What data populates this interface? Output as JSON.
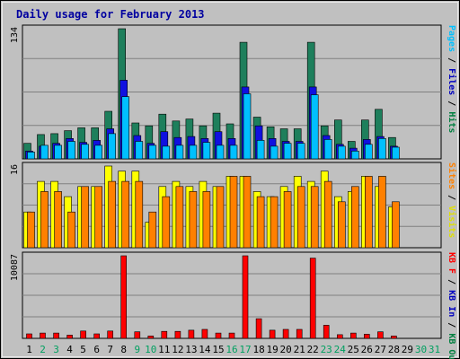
{
  "chart_data": {
    "type": "bar",
    "title": "Daily usage for February 2013",
    "categories": [
      "1",
      "2",
      "3",
      "4",
      "5",
      "6",
      "7",
      "8",
      "9",
      "10",
      "11",
      "12",
      "13",
      "14",
      "15",
      "16",
      "17",
      "18",
      "19",
      "20",
      "21",
      "22",
      "23",
      "24",
      "25",
      "26",
      "27",
      "28",
      "29",
      "30",
      "31"
    ],
    "weekend_days": [
      "2",
      "3",
      "9",
      "10",
      "16",
      "17",
      "23",
      "24",
      "30",
      "31"
    ],
    "panels": [
      {
        "id": "hits-files-pages",
        "max_label": "134",
        "ylim": [
          0,
          134
        ],
        "axis_labels": [
          {
            "text": "Pages",
            "color": "#00c0ff"
          },
          {
            "text": " / ",
            "color": "#000000"
          },
          {
            "text": "Files",
            "color": "#0000c0"
          },
          {
            "text": " / ",
            "color": "#000000"
          },
          {
            "text": "Hits",
            "color": "#008040"
          }
        ],
        "series": [
          {
            "name": "Hits",
            "color": "#1e7f5c",
            "values": [
              16,
              25,
              26,
              29,
              32,
              32,
              49,
              134,
              37,
              34,
              46,
              39,
              41,
              34,
              47,
              36,
              120,
              43,
              33,
              31,
              31,
              120,
              34,
              40,
              18,
              40,
              51,
              22,
              null,
              null,
              null
            ]
          },
          {
            "name": "Files",
            "color": "#1010e0",
            "values": [
              8,
              13,
              16,
              21,
              17,
              19,
              31,
              81,
              24,
              16,
              28,
              22,
              23,
              21,
              28,
              21,
              74,
              34,
              21,
              18,
              18,
              74,
              24,
              15,
              11,
              20,
              23,
              13,
              null,
              null,
              null
            ]
          },
          {
            "name": "Pages",
            "color": "#00c0ff",
            "values": [
              7,
              14,
              14,
              18,
              15,
              14,
              26,
              64,
              18,
              14,
              13,
              14,
              14,
              17,
              14,
              14,
              67,
              19,
              13,
              16,
              16,
              66,
              20,
              13,
              8,
              15,
              21,
              12,
              null,
              null,
              null
            ]
          }
        ]
      },
      {
        "id": "visits-sites",
        "max_label": "16",
        "ylim": [
          0,
          16
        ],
        "axis_labels": [
          {
            "text": "Sites",
            "color": "#ff8000"
          },
          {
            "text": " / ",
            "color": "#000000"
          },
          {
            "text": "Visits",
            "color": "#e0e000"
          }
        ],
        "series": [
          {
            "name": "Visits",
            "color": "#ffff00",
            "values": [
              7,
              13,
              13,
              10,
              12,
              12,
              16,
              15,
              15,
              5,
              12,
              13,
              12,
              13,
              12,
              14,
              14,
              11,
              10,
              12,
              14,
              13,
              15,
              10,
              11,
              14,
              12,
              8,
              null,
              null,
              null
            ]
          },
          {
            "name": "Sites",
            "color": "#ff8000",
            "values": [
              7,
              11,
              11,
              7,
              12,
              12,
              13,
              13,
              13,
              7,
              10,
              12,
              11,
              11,
              12,
              14,
              14,
              10,
              10,
              11,
              12,
              12,
              13,
              9,
              12,
              14,
              14,
              9,
              null,
              null,
              null
            ]
          }
        ]
      },
      {
        "id": "kbytes",
        "max_label": "10087",
        "ylim": [
          0,
          10087
        ],
        "axis_labels": [
          {
            "text": "KB F",
            "color": "#ff0000"
          },
          {
            "text": " / ",
            "color": "#000000"
          },
          {
            "text": "KB In",
            "color": "#0000c0"
          },
          {
            "text": " / ",
            "color": "#000000"
          },
          {
            "text": "KB Out",
            "color": "#008040"
          }
        ],
        "series": [
          {
            "name": "KB F",
            "color": "#ff0000",
            "values": [
              550,
              650,
              650,
              400,
              900,
              550,
              900,
              10087,
              800,
              300,
              850,
              850,
              1000,
              1100,
              650,
              650,
              10087,
              2400,
              1000,
              1100,
              1100,
              9800,
              1600,
              450,
              650,
              500,
              800,
              300,
              null,
              null,
              null
            ]
          }
        ]
      }
    ]
  }
}
